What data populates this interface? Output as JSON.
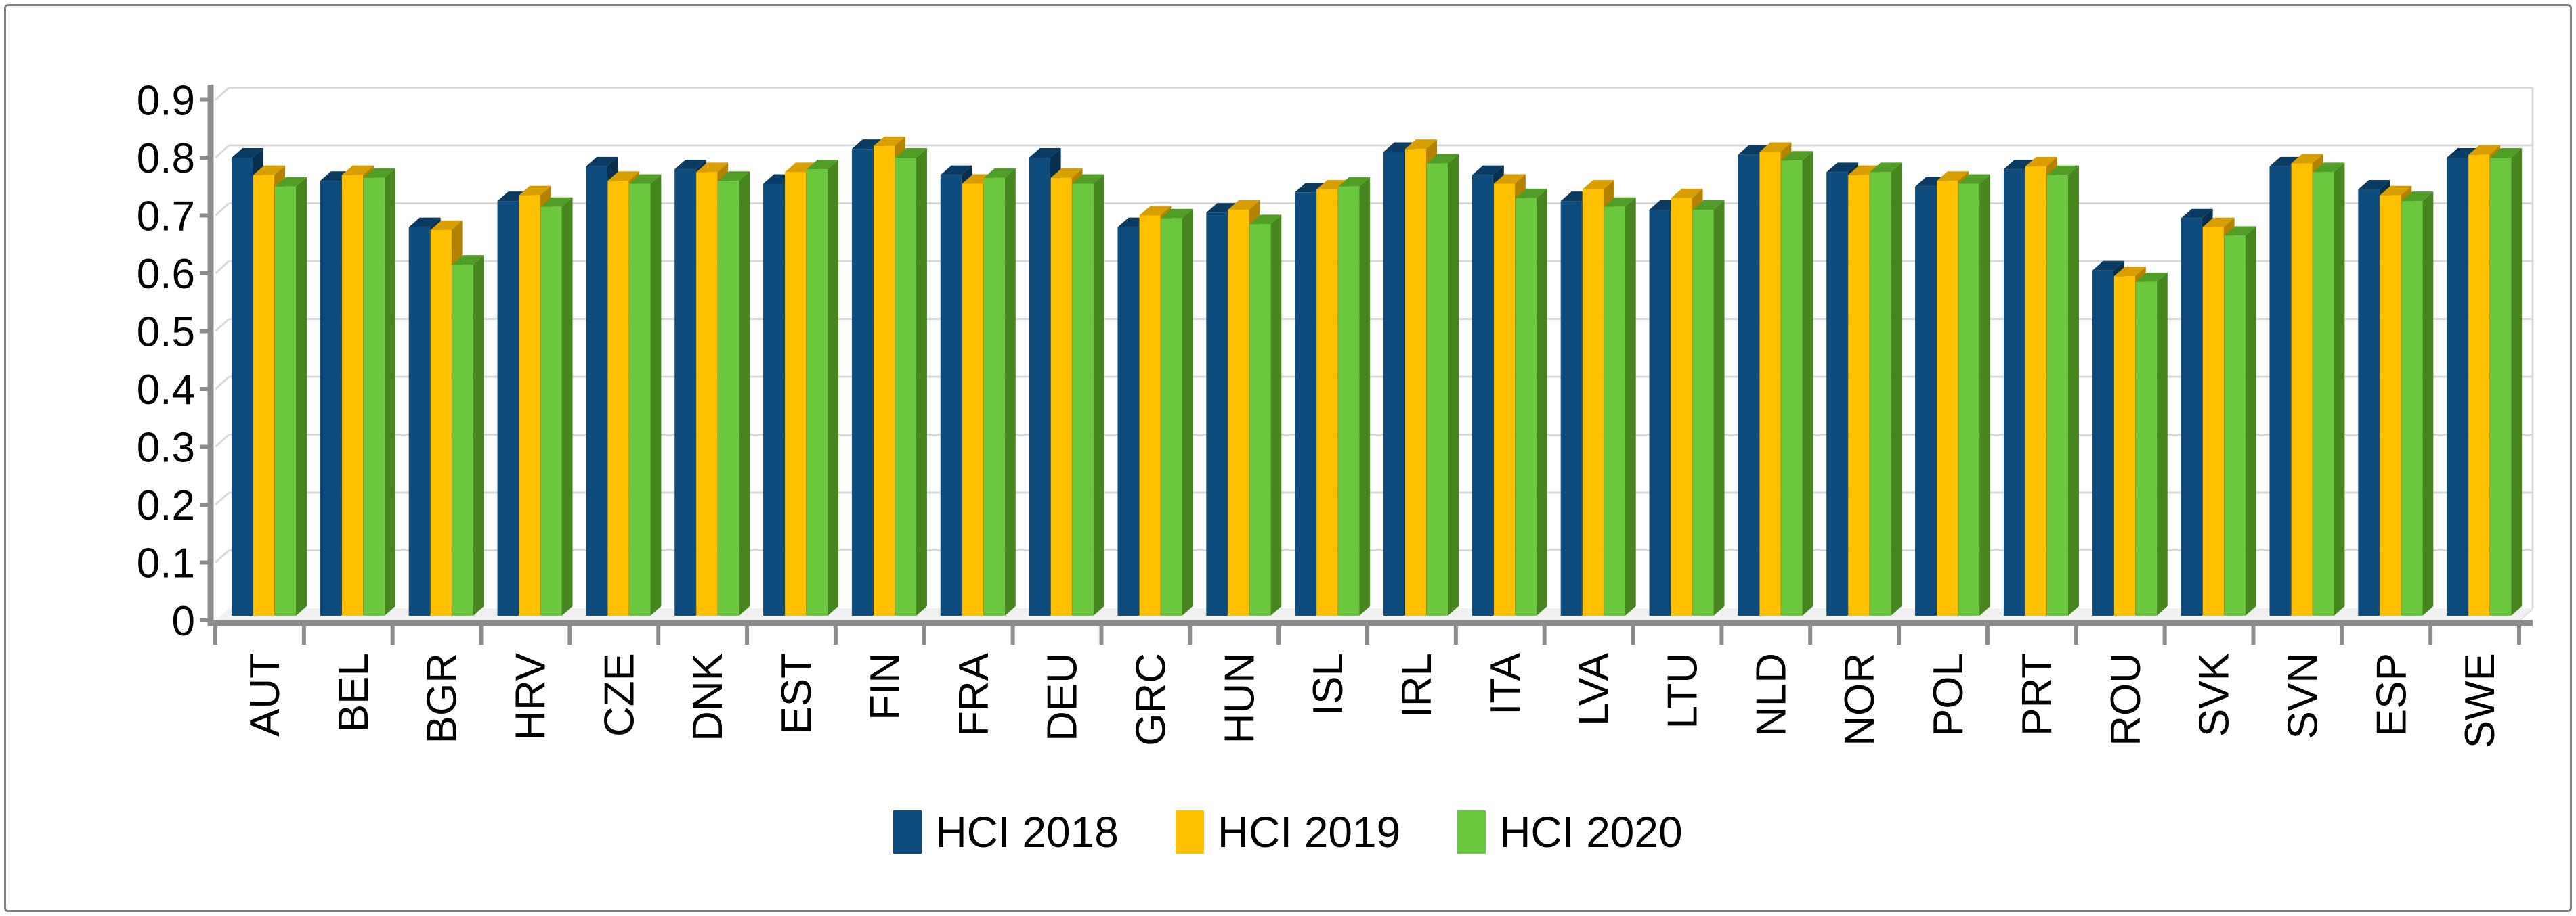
{
  "figure": {
    "title": "",
    "background_color": "#FFFFFF",
    "border_color": "#7F7F7F"
  },
  "legend": {
    "position": "bottom-center",
    "items": [
      {
        "label": "HCI 2018",
        "color": "#0E4C7D"
      },
      {
        "label": "HCI 2019",
        "color": "#FFC000"
      },
      {
        "label": "HCI 2020",
        "color": "#6BC83E"
      }
    ]
  },
  "colors": {
    "gridline": "#D9D9D9",
    "axis": "#8C8C8C",
    "floor": "#F0F0F0",
    "text": "#000000",
    "bar_faces": [
      "#0E4C7D",
      "#FFC000",
      "#6BC83E"
    ],
    "bar_tops": [
      "#0A3C63",
      "#D99E00",
      "#519E27"
    ],
    "bar_sides": [
      "#082F4E",
      "#B38300",
      "#47851F"
    ]
  },
  "chart_data": {
    "type": "bar",
    "style": "3d-clustered-column",
    "title": "",
    "xlabel": "",
    "ylabel": "",
    "ylim": [
      0,
      0.9
    ],
    "ytick_labels": [
      "0",
      "0.1",
      "0.2",
      "0.3",
      "0.4",
      "0.5",
      "0.6",
      "0.7",
      "0.8",
      "0.9"
    ],
    "grid": true,
    "legend_position": "bottom",
    "categories": [
      "AUT",
      "BEL",
      "BGR",
      "HRV",
      "CZE",
      "DNK",
      "EST",
      "FIN",
      "FRA",
      "DEU",
      "GRC",
      "HUN",
      "ISL",
      "IRL",
      "ITA",
      "LVA",
      "LTU",
      "NLD",
      "NOR",
      "POL",
      "PRT",
      "ROU",
      "SVK",
      "SVN",
      "ESP",
      "SWE"
    ],
    "series": [
      {
        "name": "HCI 2018",
        "color": "#0E4C7D",
        "values": [
          0.8,
          0.76,
          0.68,
          0.725,
          0.785,
          0.78,
          0.755,
          0.815,
          0.77,
          0.8,
          0.68,
          0.705,
          0.74,
          0.81,
          0.77,
          0.725,
          0.71,
          0.805,
          0.775,
          0.75,
          0.78,
          0.605,
          0.695,
          0.785,
          0.745,
          0.8
        ]
      },
      {
        "name": "HCI 2019",
        "color": "#FFC000",
        "values": [
          0.77,
          0.77,
          0.675,
          0.735,
          0.76,
          0.775,
          0.775,
          0.82,
          0.755,
          0.765,
          0.7,
          0.71,
          0.745,
          0.815,
          0.755,
          0.745,
          0.73,
          0.81,
          0.77,
          0.76,
          0.785,
          0.595,
          0.68,
          0.79,
          0.735,
          0.805
        ]
      },
      {
        "name": "HCI 2020",
        "color": "#6BC83E",
        "values": [
          0.75,
          0.765,
          0.615,
          0.715,
          0.755,
          0.76,
          0.78,
          0.8,
          0.765,
          0.755,
          0.695,
          0.685,
          0.75,
          0.79,
          0.73,
          0.715,
          0.71,
          0.795,
          0.775,
          0.755,
          0.77,
          0.585,
          0.665,
          0.775,
          0.725,
          0.8
        ]
      }
    ]
  }
}
